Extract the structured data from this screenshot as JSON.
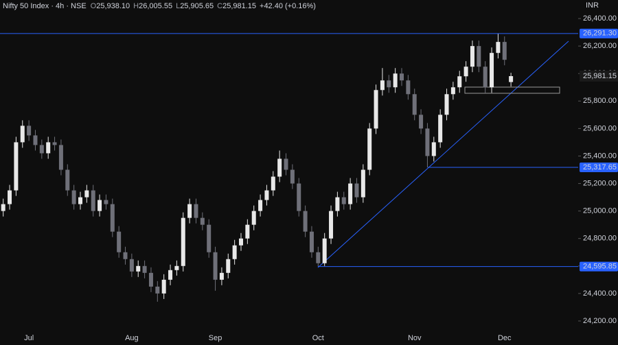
{
  "chart_data": {
    "type": "candlestick",
    "title": "Nifty 50 Index · 4h · NSE",
    "ohlc_legend": [
      {
        "label": "O",
        "value": "25,938.10"
      },
      {
        "label": "H",
        "value": "26,005.55"
      },
      {
        "label": "L",
        "value": "25,905.65"
      },
      {
        "label": "C",
        "value": "25,981.15"
      }
    ],
    "change": "+42.40 (+0.16%)",
    "currency": "INR",
    "up_color": "#e8e8e8",
    "down_color": "#6f7079",
    "level_color": "#2962ff",
    "categories": [
      null,
      null,
      null,
      null,
      "Jul",
      null,
      null,
      null,
      null,
      null,
      null,
      null,
      null,
      null,
      null,
      null,
      null,
      null,
      null,
      null,
      "Aug",
      null,
      null,
      null,
      null,
      null,
      null,
      null,
      null,
      null,
      null,
      null,
      null,
      "Sep",
      null,
      null,
      null,
      null,
      null,
      null,
      null,
      null,
      null,
      null,
      null,
      null,
      null,
      null,
      null,
      "Oct",
      null,
      null,
      null,
      null,
      null,
      null,
      null,
      null,
      null,
      null,
      null,
      null,
      null,
      null,
      "Nov",
      null,
      null,
      null,
      null,
      null,
      null,
      null,
      null,
      null,
      null,
      null,
      null,
      null,
      "Dec",
      null
    ],
    "open": [
      25000,
      25050,
      25150,
      25500,
      25620,
      25550,
      25480,
      25420,
      25500,
      25480,
      25300,
      25150,
      25050,
      25100,
      25150,
      25000,
      25080,
      25050,
      24850,
      24700,
      24650,
      24560,
      24600,
      24550,
      24450,
      24400,
      24500,
      24570,
      24600,
      24950,
      25050,
      24950,
      24900,
      24700,
      24500,
      24550,
      24650,
      24750,
      24800,
      24900,
      25000,
      25080,
      25150,
      25250,
      25380,
      25300,
      25200,
      25000,
      24850,
      24700,
      24620,
      24800,
      25000,
      25100,
      25050,
      25200,
      25100,
      25300,
      25600,
      25880,
      25950,
      25900,
      26000,
      25950,
      25850,
      25700,
      25600,
      25400,
      25500,
      25700,
      25850,
      25900,
      25980,
      26050,
      26200,
      26050,
      25900,
      26150,
      26230,
      25938.1
    ],
    "high": [
      25090,
      25190,
      25540,
      25660,
      25660,
      25590,
      25520,
      25540,
      25540,
      25520,
      25340,
      25190,
      25140,
      25190,
      25190,
      25120,
      25120,
      25090,
      24890,
      24740,
      24690,
      24640,
      24640,
      24590,
      24490,
      24540,
      24610,
      24640,
      24990,
      25090,
      25090,
      24990,
      24940,
      24740,
      24590,
      24690,
      24790,
      24840,
      24940,
      25040,
      25120,
      25190,
      25290,
      25440,
      25420,
      25340,
      25240,
      25040,
      24890,
      24740,
      24840,
      25040,
      25140,
      25140,
      25240,
      25240,
      25340,
      25640,
      25920,
      26040,
      25990,
      26040,
      26040,
      25990,
      25890,
      25740,
      25640,
      25540,
      25740,
      25890,
      25940,
      26020,
      26090,
      26240,
      26240,
      26090,
      26190,
      26291.3,
      26270,
      26005.55
    ],
    "low": [
      24960,
      25010,
      25110,
      25460,
      25510,
      25440,
      25380,
      25380,
      25440,
      25260,
      25110,
      25010,
      25010,
      25060,
      24960,
      24960,
      25010,
      24810,
      24660,
      24610,
      24520,
      24520,
      24510,
      24410,
      24340,
      24360,
      24460,
      24530,
      24560,
      24910,
      24910,
      24860,
      24660,
      24420,
      24460,
      24510,
      24610,
      24710,
      24760,
      24860,
      24960,
      25040,
      25110,
      25210,
      25260,
      25160,
      24960,
      24810,
      24660,
      24595.85,
      24600,
      24760,
      24960,
      25010,
      25010,
      25060,
      25060,
      25260,
      25560,
      25840,
      25860,
      25860,
      25910,
      25810,
      25660,
      25560,
      25317.65,
      25360,
      25460,
      25660,
      25810,
      25860,
      25940,
      26010,
      26010,
      25860,
      25860,
      26110,
      26060,
      25905.65
    ],
    "close": [
      25050,
      25150,
      25500,
      25620,
      25550,
      25480,
      25420,
      25500,
      25480,
      25300,
      25150,
      25050,
      25100,
      25150,
      25000,
      25080,
      25050,
      24850,
      24700,
      24650,
      24560,
      24600,
      24550,
      24450,
      24400,
      24500,
      24570,
      24600,
      24950,
      25050,
      24950,
      24900,
      24700,
      24500,
      24550,
      24650,
      24750,
      24800,
      24900,
      25000,
      25080,
      25150,
      25250,
      25380,
      25300,
      25200,
      25000,
      24850,
      24700,
      24620,
      24800,
      25000,
      25100,
      25050,
      25200,
      25100,
      25300,
      25600,
      25880,
      25950,
      25900,
      26000,
      25950,
      25850,
      25700,
      25600,
      25400,
      25500,
      25700,
      25850,
      25900,
      25980,
      26050,
      26200,
      26050,
      25900,
      26150,
      26230,
      26100,
      25981.15
    ],
    "ylim": [
      24125,
      26535
    ],
    "yticks": [
      {
        "value": 26400,
        "label": "26,400.00"
      },
      {
        "value": 26200,
        "label": "26,200.00"
      },
      {
        "value": 26000,
        "label": "26,000.00"
      },
      {
        "value": 25800,
        "label": "25,800.00"
      },
      {
        "value": 25600,
        "label": "25,600.00"
      },
      {
        "value": 25400,
        "label": "25,400.00"
      },
      {
        "value": 25200,
        "label": "25,200.00"
      },
      {
        "value": 25000,
        "label": "25,000.00"
      },
      {
        "value": 24800,
        "label": "24,800.00"
      },
      {
        "value": 24600,
        "label": "24,600.00"
      },
      {
        "value": 24400,
        "label": "24,400.00"
      },
      {
        "value": 24200,
        "label": "24,200.00"
      }
    ],
    "levels": [
      {
        "value": 26291.3,
        "label": "26,291.30"
      },
      {
        "value": 25317.65,
        "label": "25,317.65"
      },
      {
        "value": 24595.85,
        "label": "24,595.85"
      }
    ],
    "last_price": {
      "value": 25981.15,
      "label": "25,981.15"
    }
  }
}
